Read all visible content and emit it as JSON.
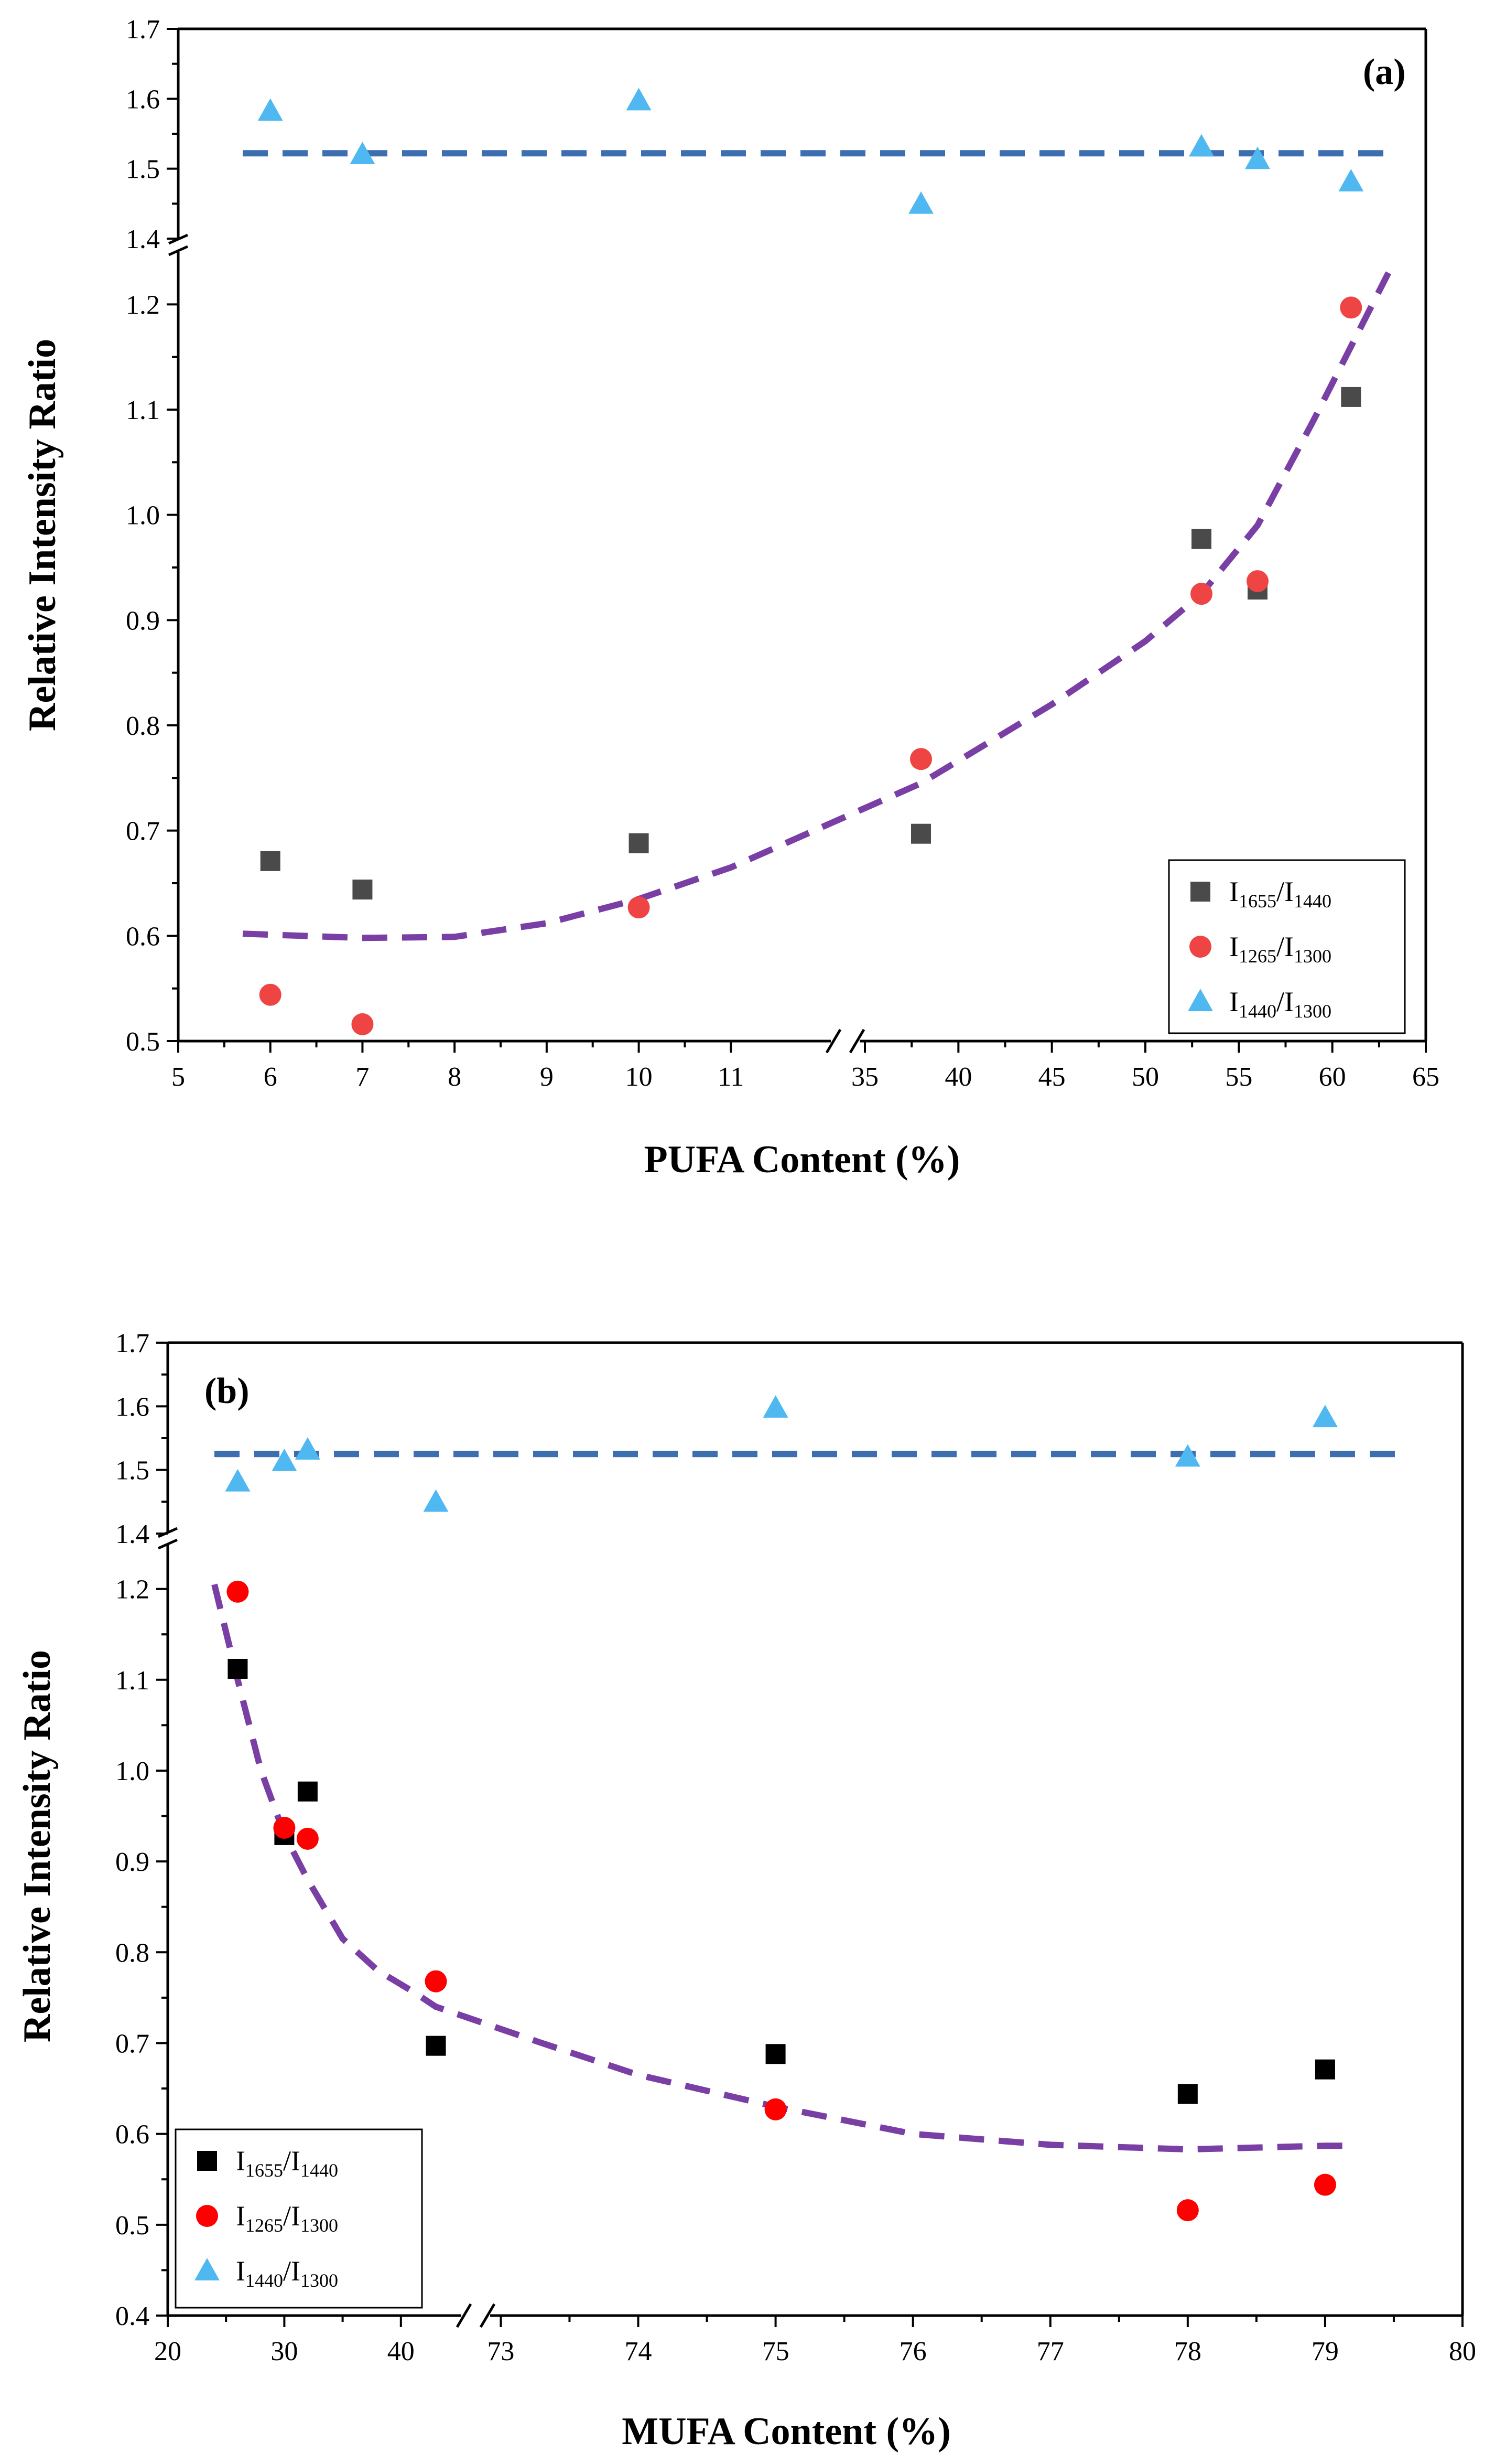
{
  "chart_data": [
    {
      "type": "scatter",
      "panel_label": "(a)",
      "xlabel": "PUFA Content (%)",
      "ylabel": "Relative Intensity Ratio",
      "x_axis_break": {
        "left_range": [
          5,
          12
        ],
        "right_range": [
          35,
          65
        ]
      },
      "y_axis_break": {
        "lower_range": [
          0.5,
          1.25
        ],
        "upper_range": [
          1.4,
          1.7
        ]
      },
      "x_ticks_left": [
        "5",
        "6",
        "7",
        "8",
        "9",
        "10",
        "11"
      ],
      "x_ticks_right": [
        "35",
        "40",
        "45",
        "50",
        "55",
        "60",
        "65"
      ],
      "y_ticks_lower": [
        "0.5",
        "0.6",
        "0.7",
        "0.8",
        "0.9",
        "1.0",
        "1.1",
        "1.2"
      ],
      "y_ticks_upper": [
        "1.4",
        "1.5",
        "1.6",
        "1.7"
      ],
      "legend_position": "bottom-right",
      "series": [
        {
          "name": "I1655/I1440",
          "legend_main": "I",
          "legend_sub1": "1655",
          "legend_mid": "/I",
          "legend_sub2": "1440",
          "marker": "square",
          "color": "#4a4a4a",
          "points": [
            [
              6,
              0.671
            ],
            [
              7,
              0.644
            ],
            [
              10,
              0.688
            ],
            [
              38,
              0.697
            ],
            [
              53,
              0.977
            ],
            [
              56,
              0.929
            ],
            [
              61,
              1.112
            ]
          ]
        },
        {
          "name": "I1265/I1300",
          "legend_main": "I",
          "legend_sub1": "1265",
          "legend_mid": "/I",
          "legend_sub2": "1300",
          "marker": "circle",
          "color": "#ef4444",
          "points": [
            [
              6,
              0.544
            ],
            [
              7,
              0.516
            ],
            [
              10,
              0.627
            ],
            [
              38,
              0.768
            ],
            [
              53,
              0.925
            ],
            [
              56,
              0.937
            ],
            [
              61,
              1.197
            ]
          ]
        },
        {
          "name": "I1440/I1300",
          "legend_main": "I",
          "legend_sub1": "1440",
          "legend_mid": "/I",
          "legend_sub2": "1300",
          "marker": "triangle",
          "color": "#4fb8f0",
          "points": [
            [
              6,
              1.582
            ],
            [
              7,
              1.52
            ],
            [
              10,
              1.597
            ],
            [
              38,
              1.449
            ],
            [
              53,
              1.531
            ],
            [
              56,
              1.513
            ],
            [
              61,
              1.481
            ]
          ]
        }
      ],
      "fit_lines": [
        {
          "style": "dashed",
          "color": "#7a3fa5",
          "points": [
            [
              5.7,
              0.602
            ],
            [
              7,
              0.598
            ],
            [
              8,
              0.599
            ],
            [
              9,
              0.612
            ],
            [
              10,
              0.635
            ],
            [
              11,
              0.665
            ],
            [
              38,
              0.745
            ],
            [
              45,
              0.82
            ],
            [
              50,
              0.88
            ],
            [
              53,
              0.925
            ],
            [
              56,
              0.99
            ],
            [
              59,
              1.09
            ],
            [
              61,
              1.16
            ],
            [
              63,
              1.23
            ]
          ]
        },
        {
          "style": "dashed",
          "color": "#3d6fb0",
          "points": [
            [
              5.7,
              1.522
            ],
            [
              63,
              1.522
            ]
          ]
        }
      ]
    },
    {
      "type": "scatter",
      "panel_label": "(b)",
      "xlabel": "MUFA Content (%)",
      "ylabel": "Relative Intensity Ratio",
      "x_axis_break": {
        "left_range": [
          20,
          45
        ],
        "right_range": [
          72.8,
          80
        ]
      },
      "y_axis_break": {
        "lower_range": [
          0.4,
          1.25
        ],
        "upper_range": [
          1.4,
          1.7
        ]
      },
      "x_ticks_left": [
        "20",
        "30",
        "40"
      ],
      "x_ticks_right": [
        "73",
        "74",
        "75",
        "76",
        "77",
        "78",
        "79",
        "80"
      ],
      "y_ticks_lower": [
        "0.4",
        "0.5",
        "0.6",
        "0.7",
        "0.8",
        "0.9",
        "1.0",
        "1.1",
        "1.2"
      ],
      "y_ticks_upper": [
        "1.4",
        "1.5",
        "1.6",
        "1.7"
      ],
      "legend_position": "bottom-left",
      "series": [
        {
          "name": "I1655/I1440",
          "legend_main": "I",
          "legend_sub1": "1655",
          "legend_mid": "/I",
          "legend_sub2": "1440",
          "marker": "square",
          "color": "#000000",
          "points": [
            [
              26,
              1.112
            ],
            [
              30,
              0.929
            ],
            [
              32,
              0.977
            ],
            [
              43,
              0.697
            ],
            [
              75,
              0.688
            ],
            [
              78,
              0.644
            ],
            [
              79,
              0.671
            ]
          ]
        },
        {
          "name": "I1265/I1300",
          "legend_main": "I",
          "legend_sub1": "1265",
          "legend_mid": "/I",
          "legend_sub2": "1300",
          "marker": "circle",
          "color": "#ff0000",
          "points": [
            [
              26,
              1.197
            ],
            [
              30,
              0.937
            ],
            [
              32,
              0.925
            ],
            [
              43,
              0.768
            ],
            [
              75,
              0.627
            ],
            [
              78,
              0.516
            ],
            [
              79,
              0.544
            ]
          ]
        },
        {
          "name": "I1440/I1300",
          "legend_main": "I",
          "legend_sub1": "1440",
          "legend_mid": "/I",
          "legend_sub2": "1300",
          "marker": "triangle",
          "color": "#4fb8f0",
          "points": [
            [
              26,
              1.481
            ],
            [
              30,
              1.513
            ],
            [
              32,
              1.531
            ],
            [
              43,
              1.449
            ],
            [
              75,
              1.597
            ],
            [
              78,
              1.52
            ],
            [
              79,
              1.582
            ]
          ]
        }
      ],
      "fit_lines": [
        {
          "style": "dashed",
          "color": "#7a3fa5",
          "points": [
            [
              24,
              1.205
            ],
            [
              26,
              1.1
            ],
            [
              28,
              1.0
            ],
            [
              30,
              0.93
            ],
            [
              32,
              0.88
            ],
            [
              35,
              0.815
            ],
            [
              38,
              0.78
            ],
            [
              41,
              0.757
            ],
            [
              43,
              0.74
            ],
            [
              73.3,
              0.7
            ],
            [
              74,
              0.665
            ],
            [
              75,
              0.63
            ],
            [
              76,
              0.6
            ],
            [
              77,
              0.588
            ],
            [
              78,
              0.583
            ],
            [
              79,
              0.587
            ],
            [
              79.2,
              0.587
            ]
          ]
        },
        {
          "style": "dashed",
          "color": "#3d6fb0",
          "points": [
            [
              24,
              1.525
            ],
            [
              79.6,
              1.525
            ]
          ]
        }
      ]
    }
  ]
}
